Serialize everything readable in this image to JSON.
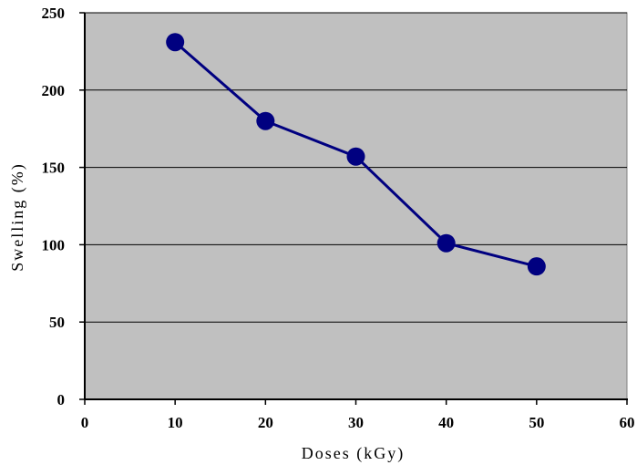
{
  "chart_data": {
    "type": "line",
    "title": "",
    "xlabel": "Doses (kGy)",
    "ylabel": "Swelling (%)",
    "xlim": [
      0,
      60
    ],
    "ylim": [
      0,
      250
    ],
    "x_ticks": [
      "0",
      "10",
      "20",
      "30",
      "40",
      "50",
      "60"
    ],
    "y_ticks": [
      "0",
      "50",
      "100",
      "150",
      "200",
      "250"
    ],
    "grid": "horizontal",
    "plot_background": "#c0c0c0",
    "series": [
      {
        "color": "#000080",
        "marker": "circle",
        "x": [
          10,
          20,
          30,
          40,
          50
        ],
        "y": [
          231,
          180,
          157,
          101,
          86
        ]
      }
    ]
  }
}
